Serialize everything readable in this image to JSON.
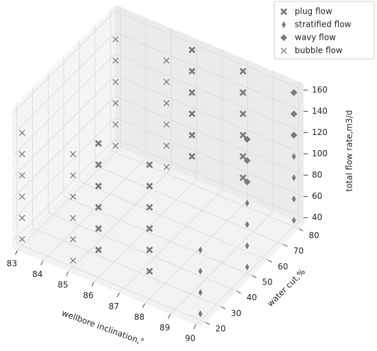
{
  "chart_data": {
    "type": "scatter3d",
    "x_label": "wellbore inclination,°",
    "y_label": "water cut,%",
    "z_label": "total flow rate,m3/d",
    "xlim": [
      82.8,
      90.2
    ],
    "ylim": [
      17,
      83
    ],
    "zlim": [
      34,
      166
    ],
    "xticks": [
      83,
      84,
      85,
      86,
      87,
      88,
      89,
      90
    ],
    "yticks": [
      20,
      30,
      40,
      50,
      60,
      70,
      80
    ],
    "zticks": [
      40,
      60,
      80,
      100,
      120,
      140,
      160
    ],
    "grid": true,
    "legend": "upper right",
    "series": [
      {
        "name": "plug flow",
        "color": "#7a7a7a",
        "marker": "X",
        "x": [
          86,
          86,
          86,
          86,
          86,
          86,
          86,
          86,
          86,
          86,
          86,
          86,
          88,
          88,
          88,
          88,
          88,
          88,
          88,
          88,
          88,
          88,
          88,
          88
        ],
        "y": [
          20,
          20,
          20,
          20,
          20,
          20,
          80,
          80,
          80,
          80,
          80,
          80,
          20,
          20,
          20,
          20,
          20,
          20,
          80,
          80,
          80,
          80,
          80,
          80
        ],
        "z": [
          60,
          80,
          100,
          120,
          140,
          160,
          60,
          80,
          100,
          120,
          140,
          160,
          60,
          80,
          100,
          120,
          140,
          160,
          60,
          80,
          100,
          120,
          140,
          160
        ]
      },
      {
        "name": "stratified flow",
        "color": "#7a7a7a",
        "marker": "d",
        "x": [
          90,
          90,
          90,
          90,
          90,
          90,
          90,
          90,
          90,
          90,
          90,
          90
        ],
        "y": [
          20,
          20,
          20,
          20,
          50,
          50,
          50,
          50,
          80,
          80,
          80,
          80
        ],
        "z": [
          40,
          60,
          80,
          100,
          40,
          60,
          80,
          100,
          40,
          60,
          80,
          100
        ]
      },
      {
        "name": "wavy flow",
        "color": "#7a7a7a",
        "marker": "D",
        "x": [
          90,
          90,
          90,
          90,
          90,
          90
        ],
        "y": [
          50,
          50,
          50,
          80,
          80,
          80
        ],
        "z": [
          120,
          140,
          160,
          120,
          140,
          160
        ]
      },
      {
        "name": "bubble flow",
        "color": "#7a7a7a",
        "marker": "x",
        "x": [
          83,
          83,
          83,
          83,
          83,
          83,
          83,
          83,
          83,
          83,
          83,
          83,
          85,
          85,
          85,
          85,
          85,
          85,
          85,
          85,
          85,
          85,
          85,
          85
        ],
        "y": [
          20,
          20,
          20,
          20,
          20,
          20,
          80,
          80,
          80,
          80,
          80,
          80,
          20,
          20,
          20,
          20,
          20,
          20,
          80,
          80,
          80,
          80,
          80,
          80
        ],
        "z": [
          40,
          60,
          80,
          100,
          120,
          140,
          40,
          60,
          80,
          100,
          120,
          140,
          40,
          60,
          80,
          100,
          120,
          140,
          40,
          60,
          80,
          100,
          120,
          140
        ]
      }
    ]
  }
}
